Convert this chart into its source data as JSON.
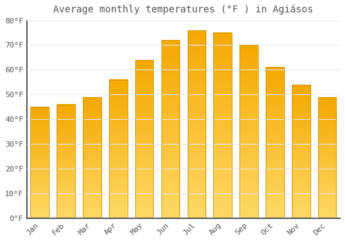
{
  "title": "Average monthly temperatures (°F ) in Agiásos",
  "months": [
    "Jan",
    "Feb",
    "Mar",
    "Apr",
    "May",
    "Jun",
    "Jul",
    "Aug",
    "Sep",
    "Oct",
    "Nov",
    "Dec"
  ],
  "values": [
    45,
    46,
    49,
    56,
    64,
    72,
    76,
    75,
    70,
    61,
    54,
    49
  ],
  "bar_color_top": "#F5A800",
  "bar_color_bottom": "#FFD966",
  "bar_edge_color": "#C8900A",
  "background_color": "#FFFFFF",
  "grid_color": "#E8E8E8",
  "text_color": "#555555",
  "ylim": [
    0,
    80
  ],
  "yticks": [
    0,
    10,
    20,
    30,
    40,
    50,
    60,
    70,
    80
  ],
  "title_fontsize": 10,
  "tick_fontsize": 8
}
